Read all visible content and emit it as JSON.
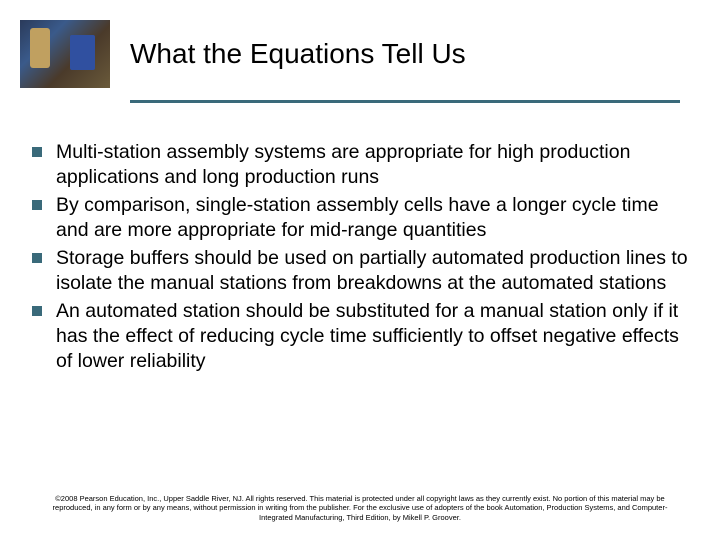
{
  "slide": {
    "title": "What the Equations Tell Us",
    "accent_color": "#3a6a7a",
    "background_color": "#ffffff",
    "title_fontsize": 28,
    "body_fontsize": 19.5,
    "footer_fontsize": 7.5,
    "bullets": [
      "Multi-station assembly systems are appropriate for high production applications and long production runs",
      "By comparison, single-station assembly cells have a longer cycle time and are more appropriate for mid-range quantities",
      "Storage buffers should be used on partially automated production lines to isolate the manual stations from breakdowns at the automated stations",
      "An automated station should be substituted for a manual station only if it has the effect of reducing cycle time sufficiently to offset negative effects of lower reliability"
    ],
    "footer": "©2008 Pearson Education, Inc., Upper Saddle River, NJ. All rights reserved. This material is protected under all copyright laws as they currently exist. No portion of this material may be reproduced, in any form or by any means, without permission in writing from the publisher. For the exclusive use of adopters of the book Automation, Production Systems, and Computer-Integrated Manufacturing, Third Edition, by Mikell P. Groover."
  }
}
